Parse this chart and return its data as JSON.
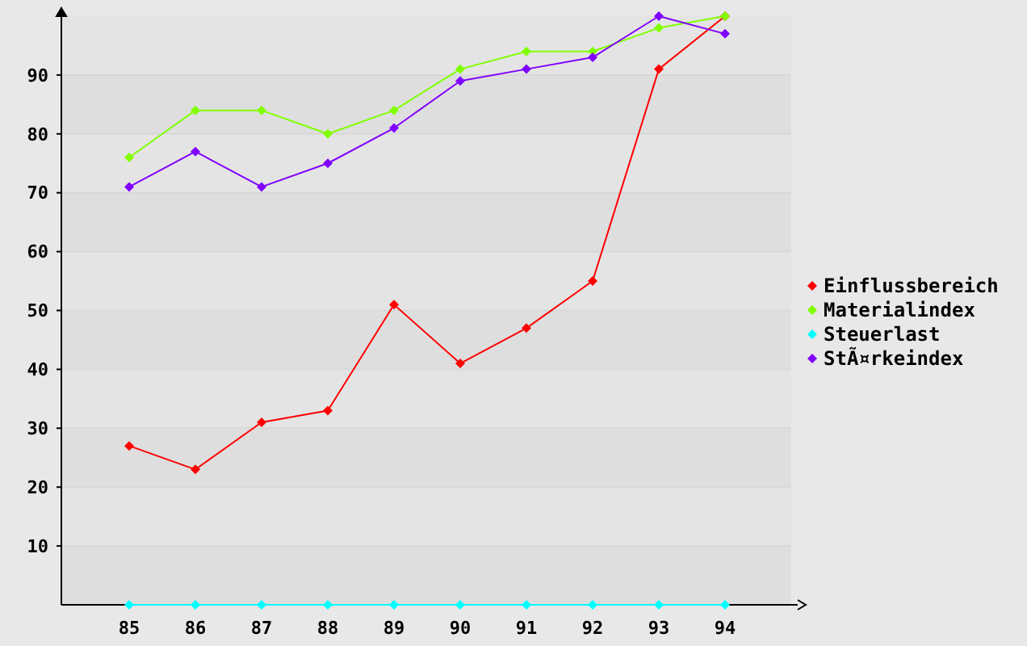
{
  "chart_data": {
    "type": "line",
    "categories": [
      "85",
      "86",
      "87",
      "88",
      "89",
      "90",
      "91",
      "92",
      "93",
      "94"
    ],
    "series": [
      {
        "name": "Einflussbereich",
        "color": "#ff0000",
        "values": [
          27,
          23,
          31,
          33,
          51,
          41,
          47,
          55,
          91,
          100
        ]
      },
      {
        "name": "Materialindex",
        "color": "#80ff00",
        "values": [
          76,
          84,
          84,
          80,
          84,
          91,
          94,
          94,
          98,
          100
        ]
      },
      {
        "name": "Steuerlast",
        "color": "#00ffff",
        "values": [
          0,
          0,
          0,
          0,
          0,
          0,
          0,
          0,
          0,
          0
        ]
      },
      {
        "name": "StÃ¤rkeindex",
        "color": "#8000ff",
        "values": [
          71,
          77,
          71,
          75,
          81,
          89,
          91,
          93,
          100,
          97
        ]
      }
    ],
    "ylim": [
      0,
      100
    ],
    "grid": "y",
    "yticks": [
      10,
      20,
      30,
      40,
      50,
      60,
      70,
      80,
      90
    ],
    "legend": "right",
    "marker": "diamond",
    "line_style": "solid"
  }
}
